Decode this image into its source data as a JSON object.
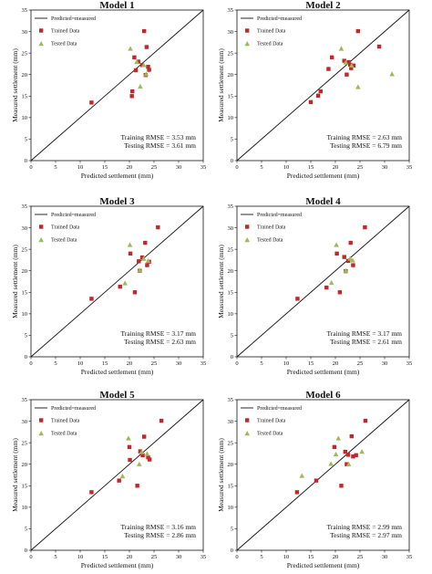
{
  "charts": [
    {
      "title": "Model 1",
      "xlabel": "Predicted settlement (mm)",
      "ylabel": "Measured settlement (mm)",
      "xlim": [
        0,
        35
      ],
      "ylim": [
        0,
        35
      ],
      "ticks": [
        0,
        5,
        10,
        15,
        20,
        25,
        30,
        35
      ],
      "legend": [
        "Predicted=measured",
        "Trained Data",
        "Tested Data"
      ],
      "rmse": [
        "Training RMSE = 3.53 mm",
        "Testing RMSE = 3.61 mm"
      ]
    },
    {
      "title": "Model 2",
      "xlabel": "Predicted settlement (mm)",
      "ylabel": "Measured settlement (mm)",
      "xlim": [
        0,
        35
      ],
      "ylim": [
        0,
        35
      ],
      "ticks": [
        0,
        5,
        10,
        15,
        20,
        25,
        30,
        35
      ],
      "legend": [
        "Predicted=measured",
        "Trained Data",
        "Tested Data"
      ],
      "rmse": [
        "Training RMSE = 2.63 mm",
        "Testing RMSE = 6.79 mm"
      ]
    },
    {
      "title": "Model 3",
      "xlabel": "Predicted settlement (mm)",
      "ylabel": "Measured settlement (mm)",
      "xlim": [
        0,
        35
      ],
      "ylim": [
        0,
        35
      ],
      "ticks": [
        0,
        5,
        10,
        15,
        20,
        25,
        30,
        35
      ],
      "legend": [
        "Predicted=measured",
        "Trained Data",
        "Tested Data"
      ],
      "rmse": [
        "Training RMSE = 3.17 mm",
        "Testing RMSE = 2.63 mm"
      ]
    },
    {
      "title": "Model 4",
      "xlabel": "Predicted settlement (mm)",
      "ylabel": "Measured settlement (mm)",
      "xlim": [
        0,
        35
      ],
      "ylim": [
        0,
        35
      ],
      "ticks": [
        0,
        5,
        10,
        15,
        20,
        25,
        30,
        35
      ],
      "legend": [
        "Predicted=measured",
        "Trained Data",
        "Tested Data"
      ],
      "rmse": [
        "Training RMSE = 3.17 mm",
        "Testing RMSE = 2.61 mm"
      ]
    },
    {
      "title": "Model 5",
      "xlabel": "Predicted settlement (mm)",
      "ylabel": "Measured settlement (mm)",
      "xlim": [
        0,
        35
      ],
      "ylim": [
        0,
        35
      ],
      "ticks": [
        0,
        5,
        10,
        15,
        20,
        25,
        30,
        35
      ],
      "legend": [
        "Predicted=measured",
        "Trained Data",
        "Tested Data"
      ],
      "rmse": [
        "Training RMSE = 3.16 mm",
        "Testing RMSE = 2.86 mm"
      ]
    },
    {
      "title": "Model 6",
      "xlabel": "Predicted settlement (mm)",
      "ylabel": "Measured settlement (mm)",
      "xlim": [
        0,
        35
      ],
      "ylim": [
        0,
        35
      ],
      "ticks": [
        0,
        5,
        10,
        15,
        20,
        25,
        30,
        35
      ],
      "legend": [
        "Predicted=measured",
        "Trained Data",
        "Tested Data"
      ],
      "rmse": [
        "Training RMSE = 2.99 mm",
        "Testing RMSE = 2.97 mm"
      ]
    }
  ],
  "colors": {
    "trained": "#c0282b",
    "tested": "#9bbb59",
    "line": "#111111",
    "frame": "#111111"
  },
  "chart_data": [
    {
      "type": "scatter",
      "title": "Model 1",
      "xlabel": "Predicted settlement (mm)",
      "ylabel": "Measured settlement (mm)",
      "xlim": [
        0,
        35
      ],
      "ylim": [
        0,
        35
      ],
      "series": [
        {
          "name": "Predicted=measured",
          "kind": "line",
          "x": [
            0,
            35
          ],
          "y": [
            0,
            35
          ]
        },
        {
          "name": "Trained Data",
          "kind": "square",
          "x": [
            12.3,
            20.5,
            20.6,
            21.0,
            21.3,
            21.8,
            22.6,
            23.0,
            23.3,
            23.5,
            23.8,
            24.0
          ],
          "y": [
            13.5,
            15.0,
            16.1,
            24.0,
            21.0,
            23.0,
            22.2,
            30.1,
            19.9,
            26.4,
            21.8,
            21.1
          ]
        },
        {
          "name": "Tested Data",
          "kind": "triangle",
          "x": [
            20.2,
            21.5,
            22.2,
            22.9,
            23.4
          ],
          "y": [
            26.0,
            22.9,
            17.2,
            22.2,
            20.1
          ]
        }
      ]
    },
    {
      "type": "scatter",
      "title": "Model 2",
      "xlabel": "Predicted settlement (mm)",
      "ylabel": "Measured settlement (mm)",
      "xlim": [
        0,
        35
      ],
      "ylim": [
        0,
        35
      ],
      "series": [
        {
          "name": "Predicted=measured",
          "kind": "line",
          "x": [
            0,
            35
          ],
          "y": [
            0,
            35
          ]
        },
        {
          "name": "Trained Data",
          "kind": "square",
          "x": [
            15.0,
            16.5,
            17.0,
            18.6,
            19.3,
            21.8,
            22.3,
            22.7,
            23.0,
            23.2,
            23.7,
            24.6,
            28.9
          ],
          "y": [
            13.6,
            15.1,
            16.1,
            21.3,
            24.0,
            23.2,
            20.0,
            22.9,
            22.3,
            21.5,
            22.1,
            30.1,
            26.5
          ]
        },
        {
          "name": "Tested Data",
          "kind": "triangle",
          "x": [
            21.2,
            22.1,
            23.3,
            24.6,
            31.5
          ],
          "y": [
            26.0,
            22.8,
            22.1,
            17.1,
            20.1
          ]
        }
      ]
    },
    {
      "type": "scatter",
      "title": "Model 3",
      "xlabel": "Predicted settlement (mm)",
      "ylabel": "Measured settlement (mm)",
      "xlim": [
        0,
        35
      ],
      "ylim": [
        0,
        35
      ],
      "series": [
        {
          "name": "Predicted=measured",
          "kind": "line",
          "x": [
            0,
            35
          ],
          "y": [
            0,
            35
          ]
        },
        {
          "name": "Trained Data",
          "kind": "square",
          "x": [
            12.3,
            18.1,
            20.2,
            21.1,
            21.9,
            22.1,
            22.6,
            23.2,
            23.6,
            24.0,
            25.8
          ],
          "y": [
            13.5,
            16.3,
            24.0,
            15.0,
            22.2,
            20.0,
            23.1,
            26.5,
            21.3,
            22.1,
            30.1
          ]
        },
        {
          "name": "Tested Data",
          "kind": "triangle",
          "x": [
            19.1,
            20.1,
            22.1,
            22.9,
            23.8
          ],
          "y": [
            17.1,
            26.0,
            20.1,
            22.8,
            22.3
          ]
        }
      ]
    },
    {
      "type": "scatter",
      "title": "Model 4",
      "xlabel": "Predicted settlement (mm)",
      "ylabel": "Measured settlement (mm)",
      "xlim": [
        0,
        35
      ],
      "ylim": [
        0,
        35
      ],
      "series": [
        {
          "name": "Predicted=measured",
          "kind": "line",
          "x": [
            0,
            35
          ],
          "y": [
            0,
            35
          ]
        },
        {
          "name": "Trained Data",
          "kind": "square",
          "x": [
            12.3,
            18.2,
            20.3,
            20.9,
            21.8,
            22.1,
            22.6,
            23.1,
            23.6,
            26.0
          ],
          "y": [
            13.5,
            16.1,
            24.0,
            15.0,
            23.2,
            19.9,
            22.3,
            26.5,
            21.3,
            30.1
          ]
        },
        {
          "name": "Tested Data",
          "kind": "triangle",
          "x": [
            19.2,
            20.2,
            22.1,
            23.0,
            23.5
          ],
          "y": [
            17.2,
            26.0,
            20.0,
            22.8,
            22.4
          ]
        }
      ]
    },
    {
      "type": "scatter",
      "title": "Model 5",
      "xlabel": "Predicted settlement (mm)",
      "ylabel": "Measured settlement (mm)",
      "xlim": [
        0,
        35
      ],
      "ylim": [
        0,
        35
      ],
      "series": [
        {
          "name": "Predicted=measured",
          "kind": "line",
          "x": [
            0,
            35
          ],
          "y": [
            0,
            35
          ]
        },
        {
          "name": "Trained Data",
          "kind": "square",
          "x": [
            12.3,
            17.9,
            20.0,
            20.1,
            21.6,
            22.2,
            22.7,
            23.0,
            23.8,
            24.1,
            26.5
          ],
          "y": [
            13.5,
            16.2,
            24.0,
            21.0,
            15.0,
            23.0,
            22.1,
            26.4,
            21.6,
            21.1,
            30.1
          ]
        },
        {
          "name": "Tested Data",
          "kind": "triangle",
          "x": [
            18.6,
            19.8,
            22.0,
            22.5,
            23.6
          ],
          "y": [
            17.2,
            26.0,
            20.0,
            22.8,
            22.4
          ]
        }
      ]
    },
    {
      "type": "scatter",
      "title": "Model 6",
      "xlabel": "Predicted settlement (mm)",
      "ylabel": "Measured settlement (mm)",
      "xlim": [
        0,
        35
      ],
      "ylim": [
        0,
        35
      ],
      "series": [
        {
          "name": "Predicted=measured",
          "kind": "line",
          "x": [
            0,
            35
          ],
          "y": [
            0,
            35
          ]
        },
        {
          "name": "Trained Data",
          "kind": "square",
          "x": [
            12.2,
            16.1,
            19.8,
            21.2,
            22.0,
            22.3,
            22.6,
            23.3,
            23.6,
            24.2,
            26.1
          ],
          "y": [
            13.5,
            16.2,
            24.0,
            15.0,
            22.9,
            20.0,
            22.2,
            26.5,
            21.8,
            22.1,
            30.1
          ]
        },
        {
          "name": "Tested Data",
          "kind": "triangle",
          "x": [
            13.2,
            19.1,
            20.1,
            20.6,
            22.7,
            25.4
          ],
          "y": [
            17.3,
            20.1,
            22.3,
            26.0,
            20.0,
            22.9
          ]
        }
      ]
    }
  ]
}
